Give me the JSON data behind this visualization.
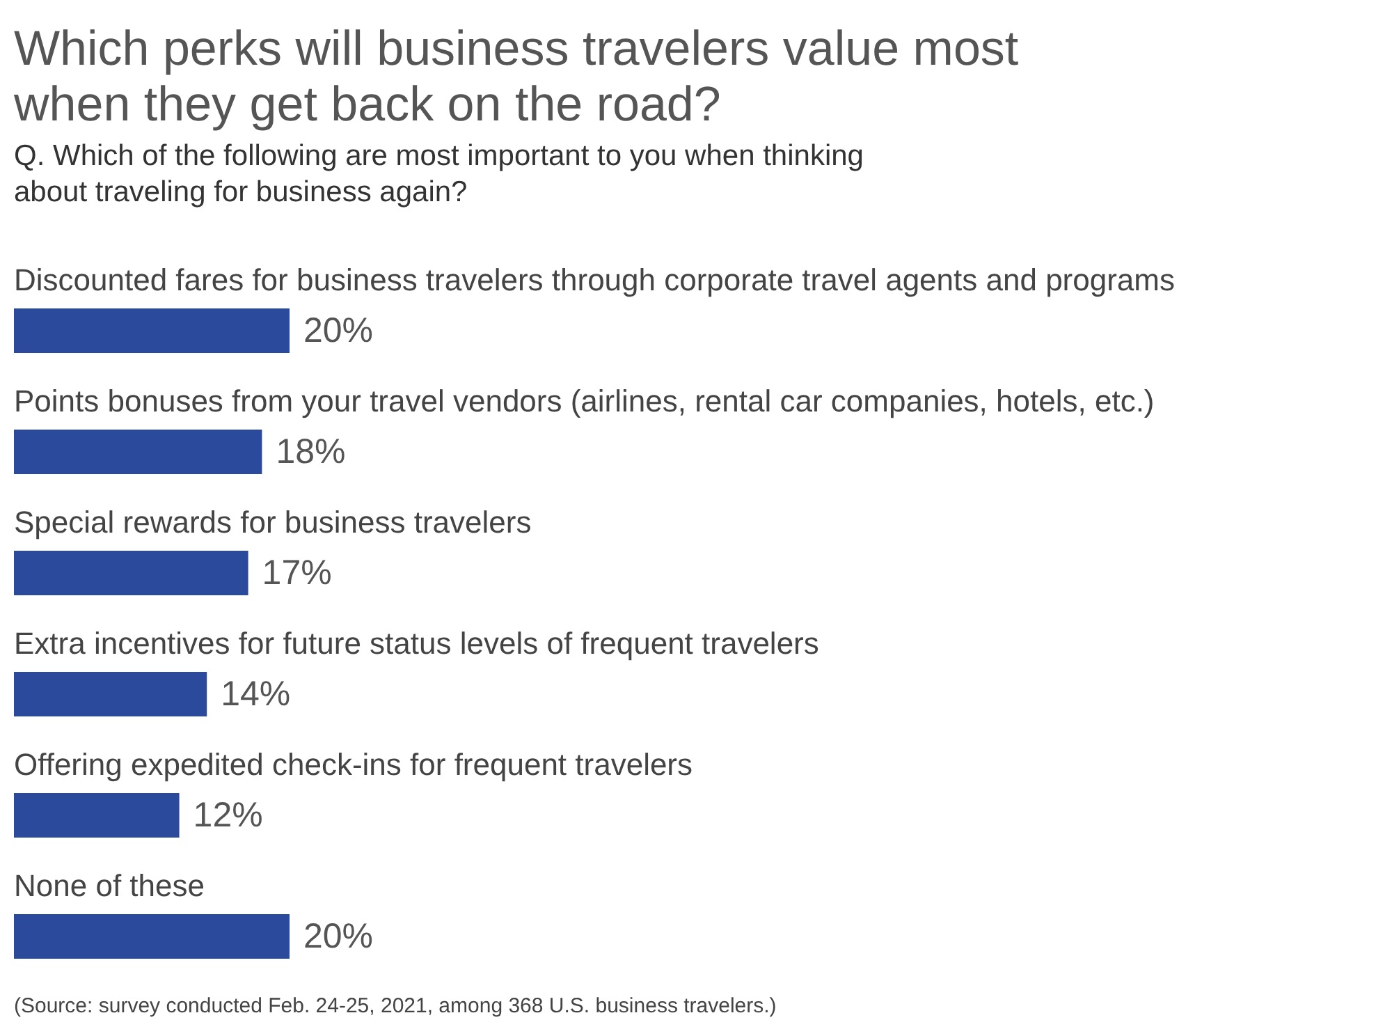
{
  "chart_data": {
    "type": "bar",
    "orientation": "horizontal",
    "title": "Which perks will business travelers value most when they get back on the road?",
    "subtitle": "Q. Which of the following are most important to you when thinking about traveling for business again?",
    "categories": [
      "Discounted fares for business travelers through corporate travel agents and programs",
      "Points bonuses from your travel vendors (airlines, rental car companies, hotels, etc.)",
      "Special rewards for business travelers",
      "Extra incentives for future status levels of frequent travelers",
      "Offering expedited check-ins for frequent travelers",
      "None of these"
    ],
    "values": [
      20,
      18,
      17,
      14,
      12,
      20
    ],
    "value_labels": [
      "20%",
      "18%",
      "17%",
      "14%",
      "12%",
      "20%"
    ],
    "color": "#2c4a9c",
    "annotations": [
      "(Source: survey conducted Feb. 24-25, 2021, among 368 U.S. business travelers.)"
    ]
  }
}
